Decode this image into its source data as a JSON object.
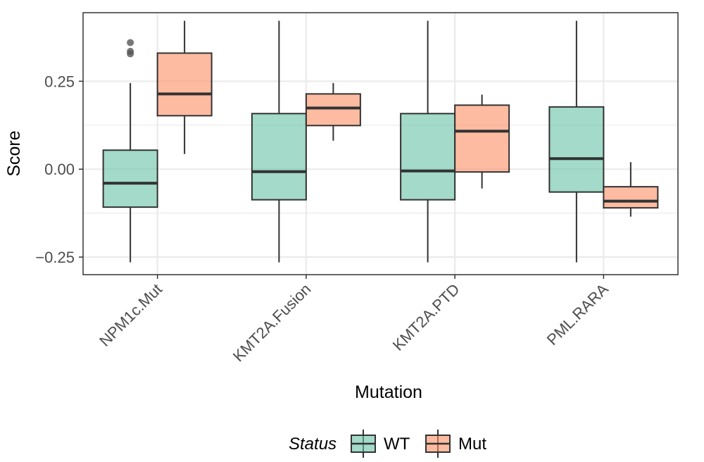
{
  "chart_data": {
    "type": "boxplot",
    "xlabel": "Mutation",
    "ylabel": "Score",
    "ylim": [
      -0.3,
      0.445
    ],
    "yticks": [
      -0.25,
      0.0,
      0.25
    ],
    "ytick_labels": [
      "−0.25",
      "0.00",
      "0.25"
    ],
    "categories": [
      "NPM1c.Mut",
      "KMT2A.Fusion",
      "KMT2A.PTD",
      "PML.RARA"
    ],
    "grid": true,
    "legend": {
      "title": "Status",
      "placement": "bottom",
      "entries": [
        "WT",
        "Mut"
      ]
    },
    "colors": {
      "WT": "#66c2a5",
      "Mut": "#fc8d62",
      "border": "#333333",
      "outlier": "#555555",
      "grid": "#ebebeb",
      "panel_border": "#333333"
    },
    "series": [
      {
        "name": "WT",
        "boxes": [
          {
            "category": "NPM1c.Mut",
            "whisker_low": -0.265,
            "q1": -0.108,
            "median": -0.04,
            "q3": 0.054,
            "whisker_high": 0.245,
            "outliers": [
              0.36,
              0.335,
              0.328
            ]
          },
          {
            "category": "KMT2A.Fusion",
            "whisker_low": -0.265,
            "q1": -0.087,
            "median": -0.007,
            "q3": 0.158,
            "whisker_high": 0.422,
            "outliers": []
          },
          {
            "category": "KMT2A.PTD",
            "whisker_low": -0.265,
            "q1": -0.087,
            "median": -0.005,
            "q3": 0.158,
            "whisker_high": 0.422,
            "outliers": []
          },
          {
            "category": "PML.RARA",
            "whisker_low": -0.265,
            "q1": -0.065,
            "median": 0.03,
            "q3": 0.177,
            "whisker_high": 0.422,
            "outliers": []
          }
        ]
      },
      {
        "name": "Mut",
        "boxes": [
          {
            "category": "NPM1c.Mut",
            "whisker_low": 0.043,
            "q1": 0.152,
            "median": 0.214,
            "q3": 0.33,
            "whisker_high": 0.422,
            "outliers": []
          },
          {
            "category": "KMT2A.Fusion",
            "whisker_low": 0.081,
            "q1": 0.124,
            "median": 0.174,
            "q3": 0.214,
            "whisker_high": 0.245,
            "outliers": []
          },
          {
            "category": "KMT2A.PTD",
            "whisker_low": -0.055,
            "q1": -0.008,
            "median": 0.108,
            "q3": 0.182,
            "whisker_high": 0.212,
            "outliers": []
          },
          {
            "category": "PML.RARA",
            "whisker_low": -0.135,
            "q1": -0.11,
            "median": -0.091,
            "q3": -0.05,
            "whisker_high": 0.02,
            "outliers": []
          }
        ]
      }
    ]
  }
}
